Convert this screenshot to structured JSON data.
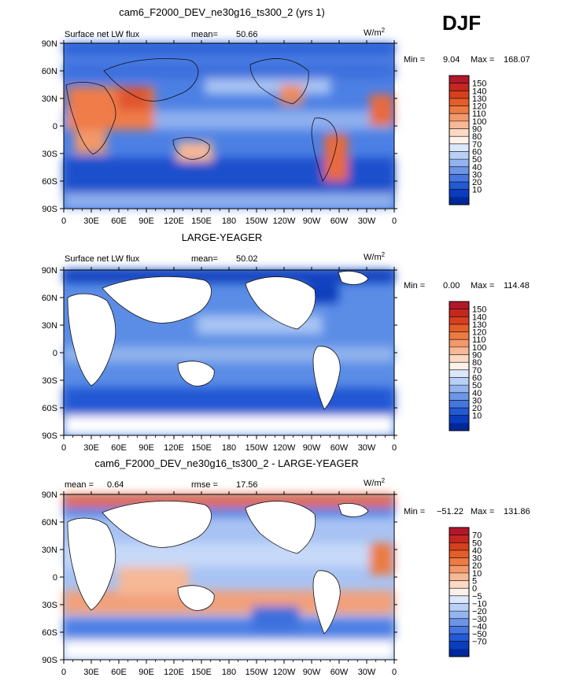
{
  "season_label": "DJF",
  "x_ticks": [
    "0",
    "30E",
    "60E",
    "90E",
    "120E",
    "150E",
    "180",
    "150W",
    "120W",
    "90W",
    "60W",
    "30W",
    "0"
  ],
  "y_ticks": [
    "90N",
    "60N",
    "30N",
    "0",
    "30S",
    "60S",
    "90S"
  ],
  "chart_data": [
    {
      "type": "heatmap",
      "title": "cam6_F2000_DEV_ne30g16_ts300_2 (yrs 1)",
      "left_label": "Surface net LW flux",
      "stat_label": "mean=",
      "stat_value": "50.66",
      "units": "W/m",
      "units_sup": "2",
      "min_label": "Min =",
      "min_value": "9.04",
      "max_label": "Max =",
      "max_value": "168.07",
      "colorbar_labels": [
        "150",
        "140",
        "130",
        "120",
        "110",
        "100",
        "90",
        "80",
        "70",
        "60",
        "50",
        "40",
        "30",
        "20",
        "10"
      ],
      "colorbar_colors": [
        "#b2182b",
        "#c5271f",
        "#d6401e",
        "#e35e2a",
        "#ec7a43",
        "#f2986b",
        "#f6b896",
        "#fbd9c4",
        "#fdf2ea",
        "#dbe7fb",
        "#b8cff6",
        "#93b4ee",
        "#6d95e6",
        "#4677df",
        "#2359d4",
        "#0a3dbc",
        "#00289a"
      ],
      "xlim": [
        0,
        360
      ],
      "ylim": [
        -90,
        90
      ],
      "land_masked": false
    },
    {
      "type": "heatmap",
      "title": "LARGE-YEAGER",
      "left_label": "Surface net LW flux",
      "stat_label": "mean=",
      "stat_value": "50.02",
      "units": "W/m",
      "units_sup": "2",
      "min_label": "Min =",
      "min_value": "0.00",
      "max_label": "Max =",
      "max_value": "114.48",
      "colorbar_labels": [
        "150",
        "140",
        "130",
        "120",
        "110",
        "100",
        "90",
        "80",
        "70",
        "60",
        "50",
        "40",
        "30",
        "20",
        "10"
      ],
      "colorbar_colors": [
        "#b2182b",
        "#c5271f",
        "#d6401e",
        "#e35e2a",
        "#ec7a43",
        "#f2986b",
        "#f6b896",
        "#fbd9c4",
        "#fdf2ea",
        "#dbe7fb",
        "#b8cff6",
        "#93b4ee",
        "#6d95e6",
        "#4677df",
        "#2359d4",
        "#0a3dbc",
        "#00289a"
      ],
      "xlim": [
        0,
        360
      ],
      "ylim": [
        -90,
        90
      ],
      "land_masked": true
    },
    {
      "type": "heatmap",
      "title": "cam6_F2000_DEV_ne30g16_ts300_2 - LARGE-YEAGER",
      "left_label": "mean =",
      "left_value": "0.64",
      "stat_label": "rmse =",
      "stat_value": "17.56",
      "units": "W/m",
      "units_sup": "2",
      "min_label": "Min =",
      "min_value": "−51.22",
      "max_label": "Max =",
      "max_value": "131.86",
      "colorbar_labels": [
        "70",
        "50",
        "40",
        "30",
        "20",
        "10",
        "5",
        "0",
        "−5",
        "−10",
        "−20",
        "−30",
        "−40",
        "−50",
        "−70"
      ],
      "colorbar_colors": [
        "#b2182b",
        "#c5271f",
        "#d6401e",
        "#e35e2a",
        "#ec7a43",
        "#f2986b",
        "#f6b896",
        "#fbd9c4",
        "#fdf2ea",
        "#dbe7fb",
        "#b8cff6",
        "#93b4ee",
        "#6d95e6",
        "#4677df",
        "#2359d4",
        "#0a3dbc",
        "#00289a"
      ],
      "xlim": [
        0,
        360
      ],
      "ylim": [
        -90,
        90
      ],
      "land_masked": true
    }
  ]
}
